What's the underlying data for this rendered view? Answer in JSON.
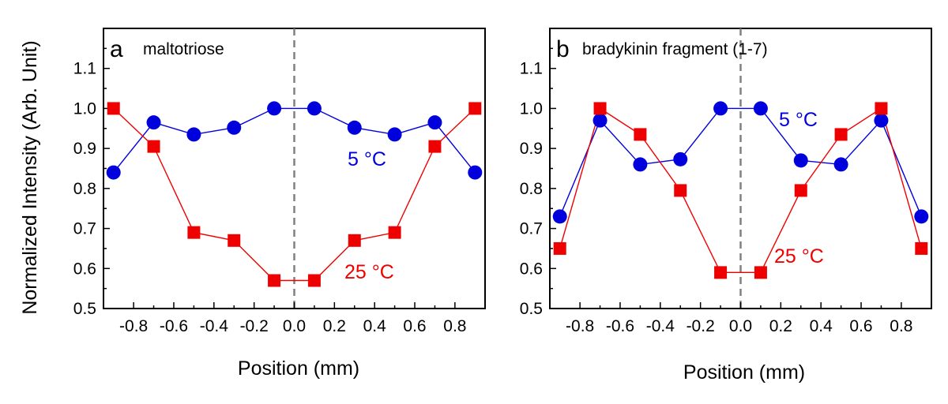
{
  "y_axis_title": "Normalized Intensity (Arb. Unit)",
  "chart_data": [
    {
      "type": "line",
      "panel_letter": "a",
      "title": "maltotriose",
      "xlabel": "Position (mm)",
      "ylabel": "Normalized Intensity (Arb. Unit)",
      "xlim": [
        -0.95,
        0.95
      ],
      "ylim": [
        0.5,
        1.2
      ],
      "xticks": [
        -0.8,
        -0.6,
        -0.4,
        -0.2,
        0.0,
        0.2,
        0.4,
        0.6,
        0.8
      ],
      "xtick_labels": [
        "-0.8",
        "-0.6",
        "-0.4",
        "-0.2",
        "0.0",
        "0.2",
        "0.4",
        "0.6",
        "0.8"
      ],
      "yticks": [
        0.5,
        0.6,
        0.7,
        0.8,
        0.9,
        1.0,
        1.1
      ],
      "ytick_labels": [
        "0.5",
        "0.6",
        "0.7",
        "0.8",
        "0.9",
        "1.0",
        "1.1"
      ],
      "reference_line_x": 0.0,
      "x": [
        -0.9,
        -0.7,
        -0.5,
        -0.3,
        -0.1,
        0.1,
        0.3,
        0.5,
        0.7,
        0.9
      ],
      "series": [
        {
          "name": "5 °C",
          "label": "5 °C",
          "marker": "circle",
          "color": "#0000dd",
          "values": [
            0.84,
            0.965,
            0.935,
            0.952,
            1.0,
            1.0,
            0.952,
            0.935,
            0.965,
            0.84
          ]
        },
        {
          "name": "25 °C",
          "label": "25 °C",
          "marker": "square",
          "color": "#ee0000",
          "values": [
            1.0,
            0.905,
            0.69,
            0.67,
            0.57,
            0.57,
            0.67,
            0.69,
            0.905,
            1.0
          ]
        }
      ]
    },
    {
      "type": "line",
      "panel_letter": "b",
      "title": "bradykinin fragment (1-7)",
      "xlabel": "Position (mm)",
      "ylabel": "Normalized Intensity (Arb. Unit)",
      "xlim": [
        -0.95,
        0.95
      ],
      "ylim": [
        0.5,
        1.2
      ],
      "xticks": [
        -0.8,
        -0.6,
        -0.4,
        -0.2,
        0.0,
        0.2,
        0.4,
        0.6,
        0.8
      ],
      "xtick_labels": [
        "-0.8",
        "-0.6",
        "-0.4",
        "-0.2",
        "0.0",
        "0.2",
        "0.4",
        "0.6",
        "0.8"
      ],
      "yticks": [
        0.5,
        0.6,
        0.7,
        0.8,
        0.9,
        1.0,
        1.1
      ],
      "ytick_labels": [
        "0.5",
        "0.6",
        "0.7",
        "0.8",
        "0.9",
        "1.0",
        "1.1"
      ],
      "reference_line_x": 0.0,
      "x": [
        -0.9,
        -0.7,
        -0.5,
        -0.3,
        -0.1,
        0.1,
        0.3,
        0.5,
        0.7,
        0.9
      ],
      "series": [
        {
          "name": "5 °C",
          "label": "5 °C",
          "marker": "circle",
          "color": "#0000dd",
          "values": [
            0.73,
            0.97,
            0.86,
            0.873,
            1.0,
            1.0,
            0.87,
            0.86,
            0.97,
            0.73
          ]
        },
        {
          "name": "25 °C",
          "label": "25 °C",
          "marker": "square",
          "color": "#ee0000",
          "values": [
            0.65,
            1.0,
            0.935,
            0.795,
            0.59,
            0.59,
            0.795,
            0.935,
            1.0,
            0.65
          ]
        }
      ]
    }
  ]
}
